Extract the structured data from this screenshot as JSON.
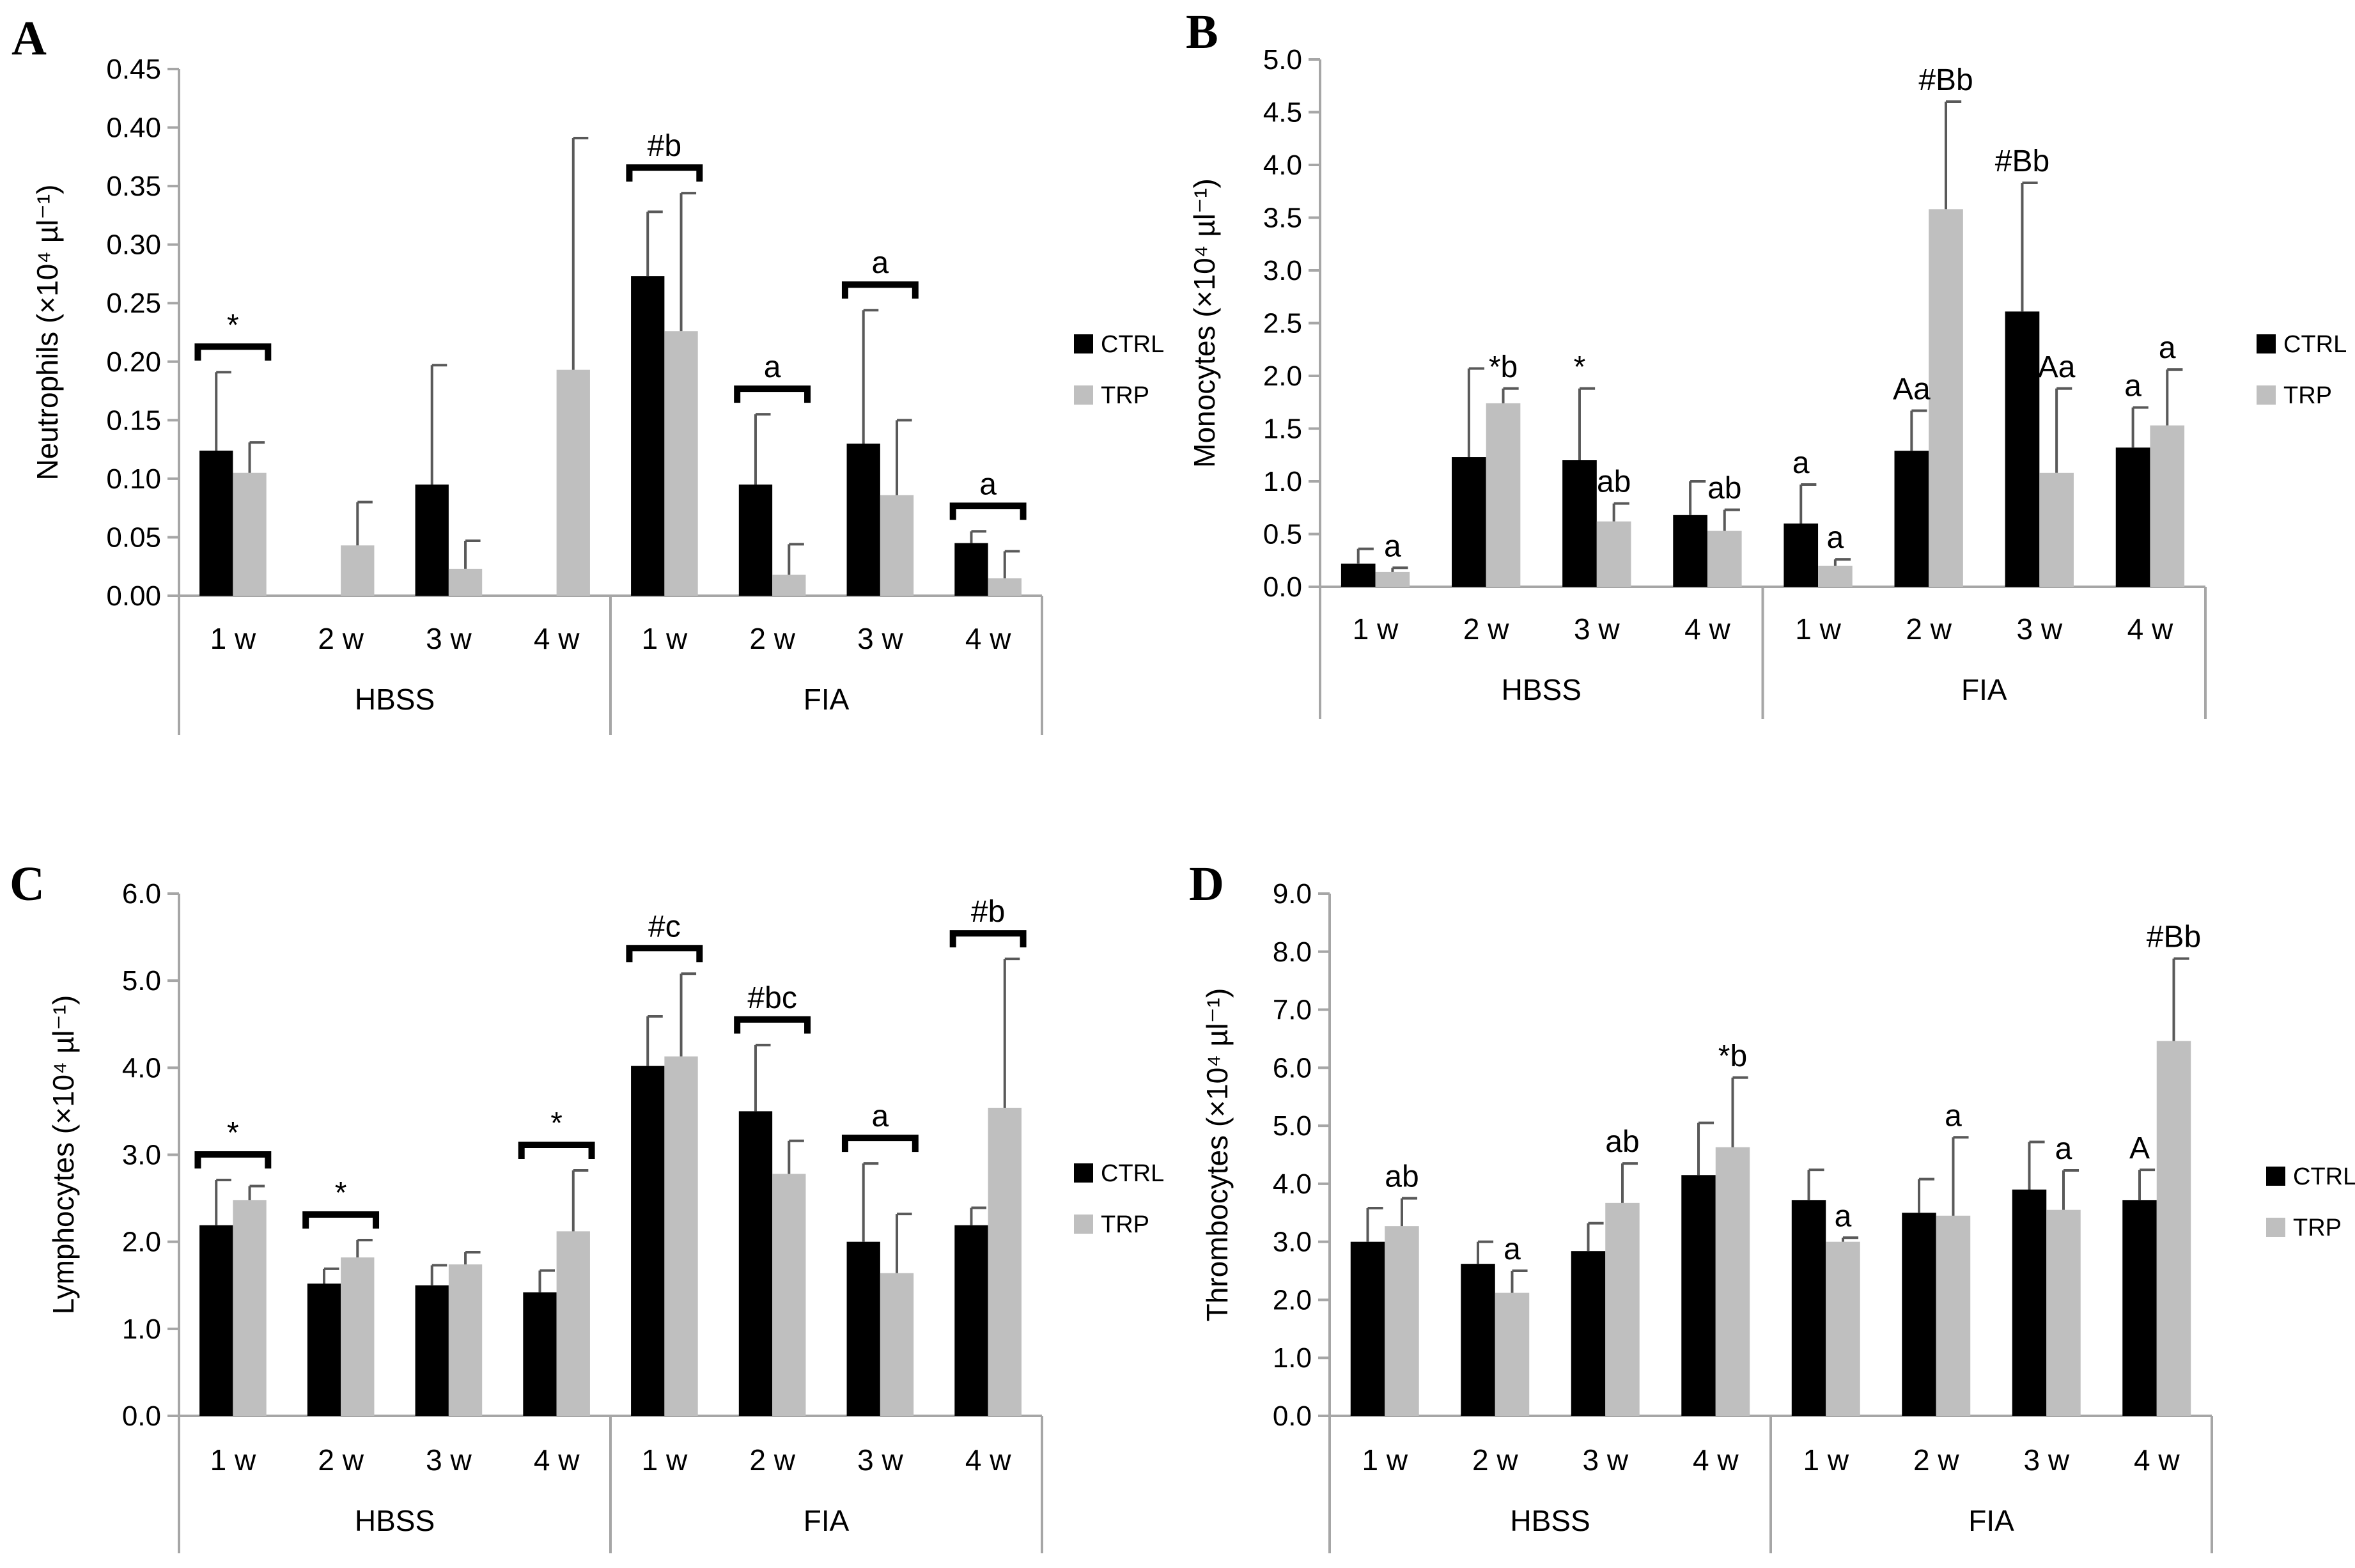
{
  "figure": {
    "panels": [
      "A",
      "B",
      "C",
      "D"
    ]
  },
  "colors": {
    "ctrl": "#000000",
    "trp": "#bfbfbf",
    "axis": "#a6a6a6",
    "error": "#595959",
    "background": "#ffffff"
  },
  "chart_data": [
    {
      "panel": "A",
      "type": "bar",
      "ylabel": "Neutrophils (×10⁴ µl⁻¹)",
      "ylim": [
        0,
        0.45
      ],
      "yticks": [
        "0.00",
        "0.05",
        "0.10",
        "0.15",
        "0.20",
        "0.25",
        "0.30",
        "0.35",
        "0.40",
        "0.45"
      ],
      "categories": [
        "1 w",
        "2 w",
        "3 w",
        "4 w",
        "1 w",
        "2 w",
        "3 w",
        "4 w"
      ],
      "groups": [
        "HBSS",
        "FIA"
      ],
      "legend": [
        "CTRL",
        "TRP"
      ],
      "series": [
        {
          "name": "CTRL",
          "values": [
            0.124,
            0,
            0.095,
            0,
            0.273,
            0.095,
            0.13,
            0.045
          ],
          "errors": [
            0.067,
            0,
            0.102,
            0,
            0.055,
            0.06,
            0.114,
            0.01
          ]
        },
        {
          "name": "TRP",
          "values": [
            0.105,
            0.043,
            0.023,
            0.193,
            0.226,
            0.018,
            0.086,
            0.015
          ],
          "errors": [
            0.026,
            0.037,
            0.024,
            0.198,
            0.118,
            0.026,
            0.064,
            0.023
          ]
        }
      ],
      "annotations": [
        {
          "cat": 0,
          "text": "*",
          "bracket": true
        },
        {
          "cat": 4,
          "text": "#b",
          "bracket": true
        },
        {
          "cat": 5,
          "text": "a",
          "bracket": true
        },
        {
          "cat": 6,
          "text": "a",
          "bracket": true
        },
        {
          "cat": 7,
          "text": "a",
          "bracket": true
        }
      ]
    },
    {
      "panel": "B",
      "type": "bar",
      "ylabel": "Monocytes (×10⁴ µl⁻¹)",
      "ylim": [
        0,
        5.0
      ],
      "yticks": [
        "0.0",
        "0.5",
        "1.0",
        "1.5",
        "2.0",
        "2.5",
        "3.0",
        "3.5",
        "4.0",
        "4.5",
        "5.0"
      ],
      "categories": [
        "1 w",
        "2 w",
        "3 w",
        "4 w",
        "1 w",
        "2 w",
        "3 w",
        "4 w"
      ],
      "groups": [
        "HBSS",
        "FIA"
      ],
      "legend": [
        "CTRL",
        "TRP"
      ],
      "series": [
        {
          "name": "CTRL",
          "values": [
            0.22,
            1.23,
            1.2,
            0.68,
            0.6,
            1.29,
            2.61,
            1.32
          ],
          "errors": [
            0.14,
            0.84,
            0.68,
            0.32,
            0.37,
            0.38,
            1.22,
            0.38
          ]
        },
        {
          "name": "TRP",
          "values": [
            0.14,
            1.74,
            0.62,
            0.53,
            0.2,
            3.58,
            1.08,
            1.53
          ],
          "errors": [
            0.04,
            0.14,
            0.17,
            0.2,
            0.06,
            1.02,
            0.8,
            0.53
          ]
        }
      ],
      "annotations": [
        {
          "cat": 0,
          "series": 1,
          "text": "a"
        },
        {
          "cat": 1,
          "series": 1,
          "text": "*b"
        },
        {
          "cat": 2,
          "series": 0,
          "text": "*"
        },
        {
          "cat": 2,
          "series": 1,
          "text": "ab"
        },
        {
          "cat": 3,
          "series": 1,
          "text": "ab"
        },
        {
          "cat": 4,
          "series": 0,
          "text": "a"
        },
        {
          "cat": 4,
          "series": 1,
          "text": "a"
        },
        {
          "cat": 5,
          "series": 0,
          "text": "Aa"
        },
        {
          "cat": 5,
          "series": 1,
          "text": "#Bb"
        },
        {
          "cat": 6,
          "series": 0,
          "text": "#Bb"
        },
        {
          "cat": 6,
          "series": 1,
          "text": "Aa"
        },
        {
          "cat": 7,
          "series": 0,
          "text": "a"
        },
        {
          "cat": 7,
          "series": 1,
          "text": "a"
        }
      ]
    },
    {
      "panel": "C",
      "type": "bar",
      "ylabel": "Lymphocytes (×10⁴ µl⁻¹)",
      "ylim": [
        0,
        6.0
      ],
      "yticks": [
        "0.0",
        "1.0",
        "2.0",
        "3.0",
        "4.0",
        "5.0",
        "6.0"
      ],
      "categories": [
        "1 w",
        "2 w",
        "3 w",
        "4 w",
        "1 w",
        "2 w",
        "3 w",
        "4 w"
      ],
      "groups": [
        "HBSS",
        "FIA"
      ],
      "legend": [
        "CTRL",
        "TRP"
      ],
      "series": [
        {
          "name": "CTRL",
          "values": [
            2.19,
            1.52,
            1.5,
            1.42,
            4.02,
            3.5,
            2.0,
            2.19
          ],
          "errors": [
            0.52,
            0.17,
            0.23,
            0.25,
            0.57,
            0.76,
            0.9,
            0.2
          ]
        },
        {
          "name": "TRP",
          "values": [
            2.48,
            1.82,
            1.74,
            2.12,
            4.13,
            2.78,
            1.64,
            3.54
          ],
          "errors": [
            0.16,
            0.2,
            0.14,
            0.7,
            0.95,
            0.38,
            0.68,
            1.71
          ]
        }
      ],
      "annotations": [
        {
          "cat": 0,
          "text": "*",
          "bracket": true
        },
        {
          "cat": 1,
          "text": "*",
          "bracket": true
        },
        {
          "cat": 3,
          "text": "*",
          "bracket": true
        },
        {
          "cat": 4,
          "text": "#c",
          "bracket": true
        },
        {
          "cat": 5,
          "text": "#bc",
          "bracket": true
        },
        {
          "cat": 6,
          "text": "a",
          "bracket": true
        },
        {
          "cat": 7,
          "text": "#b",
          "bracket": true
        }
      ]
    },
    {
      "panel": "D",
      "type": "bar",
      "ylabel": "Thrombocytes (×10⁴ µl⁻¹)",
      "ylim": [
        0,
        9.0
      ],
      "yticks": [
        "0.0",
        "1.0",
        "2.0",
        "3.0",
        "4.0",
        "5.0",
        "6.0",
        "7.0",
        "8.0",
        "9.0"
      ],
      "categories": [
        "1 w",
        "2 w",
        "3 w",
        "4 w",
        "1 w",
        "2 w",
        "3 w",
        "4 w"
      ],
      "groups": [
        "HBSS",
        "FIA"
      ],
      "legend": [
        "CTRL",
        "TRP"
      ],
      "series": [
        {
          "name": "CTRL",
          "values": [
            3.0,
            2.62,
            2.84,
            4.15,
            3.72,
            3.5,
            3.9,
            3.72
          ],
          "errors": [
            0.58,
            0.38,
            0.48,
            0.9,
            0.52,
            0.58,
            0.82,
            0.52
          ]
        },
        {
          "name": "TRP",
          "values": [
            3.27,
            2.12,
            3.67,
            4.63,
            3.0,
            3.45,
            3.55,
            6.46
          ],
          "errors": [
            0.48,
            0.38,
            0.68,
            1.2,
            0.07,
            1.35,
            0.68,
            1.42
          ]
        }
      ],
      "annotations": [
        {
          "cat": 0,
          "series": 1,
          "text": "ab"
        },
        {
          "cat": 1,
          "series": 1,
          "text": "a"
        },
        {
          "cat": 2,
          "series": 1,
          "text": "ab"
        },
        {
          "cat": 3,
          "series": 1,
          "text": "*b"
        },
        {
          "cat": 4,
          "series": 1,
          "text": "a"
        },
        {
          "cat": 5,
          "series": 1,
          "text": "a"
        },
        {
          "cat": 6,
          "series": 1,
          "text": "a"
        },
        {
          "cat": 7,
          "series": 0,
          "text": "A"
        },
        {
          "cat": 7,
          "series": 1,
          "text": "#Bb"
        }
      ]
    }
  ]
}
